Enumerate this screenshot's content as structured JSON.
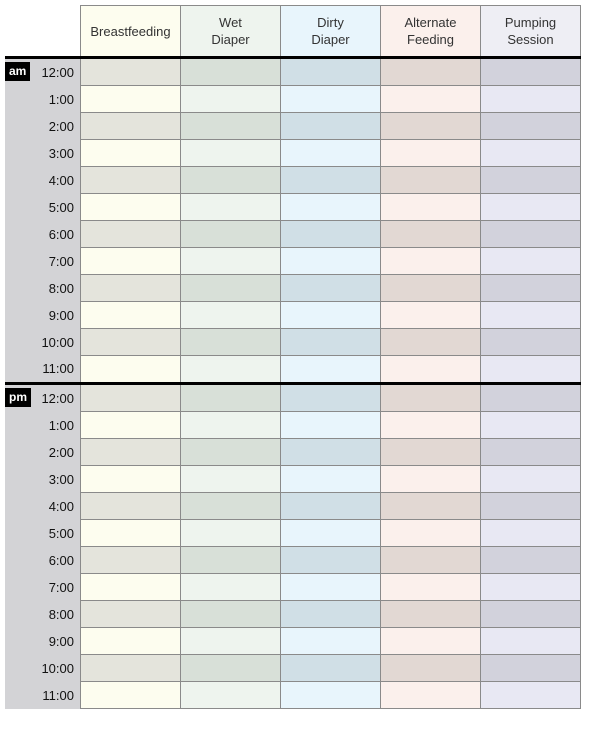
{
  "columns": [
    {
      "label": "Breastfeeding",
      "header_color": "#fdfdef",
      "light_color": "#fdfdef",
      "dark_color": "#e4e4dc"
    },
    {
      "label": "Wet\nDiaper",
      "header_color": "#eef4ee",
      "light_color": "#eef4ee",
      "dark_color": "#d8e0d8"
    },
    {
      "label": "Dirty\nDiaper",
      "header_color": "#e8f5fc",
      "light_color": "#e8f5fc",
      "dark_color": "#d0dfe6"
    },
    {
      "label": "Alternate\nFeeding",
      "header_color": "#fbf0ec",
      "light_color": "#fbf0ec",
      "dark_color": "#e2d8d3"
    },
    {
      "label": "Pumping\nSession",
      "header_color": "#eeeef4",
      "light_color": "#e8e8f3",
      "dark_color": "#d2d2dc"
    }
  ],
  "sections": [
    {
      "meridiem": "am",
      "times": [
        "12:00",
        "1:00",
        "2:00",
        "3:00",
        "4:00",
        "5:00",
        "6:00",
        "7:00",
        "8:00",
        "9:00",
        "10:00",
        "11:00"
      ]
    },
    {
      "meridiem": "pm",
      "times": [
        "12:00",
        "1:00",
        "2:00",
        "3:00",
        "4:00",
        "5:00",
        "6:00",
        "7:00",
        "8:00",
        "9:00",
        "10:00",
        "11:00"
      ]
    }
  ]
}
